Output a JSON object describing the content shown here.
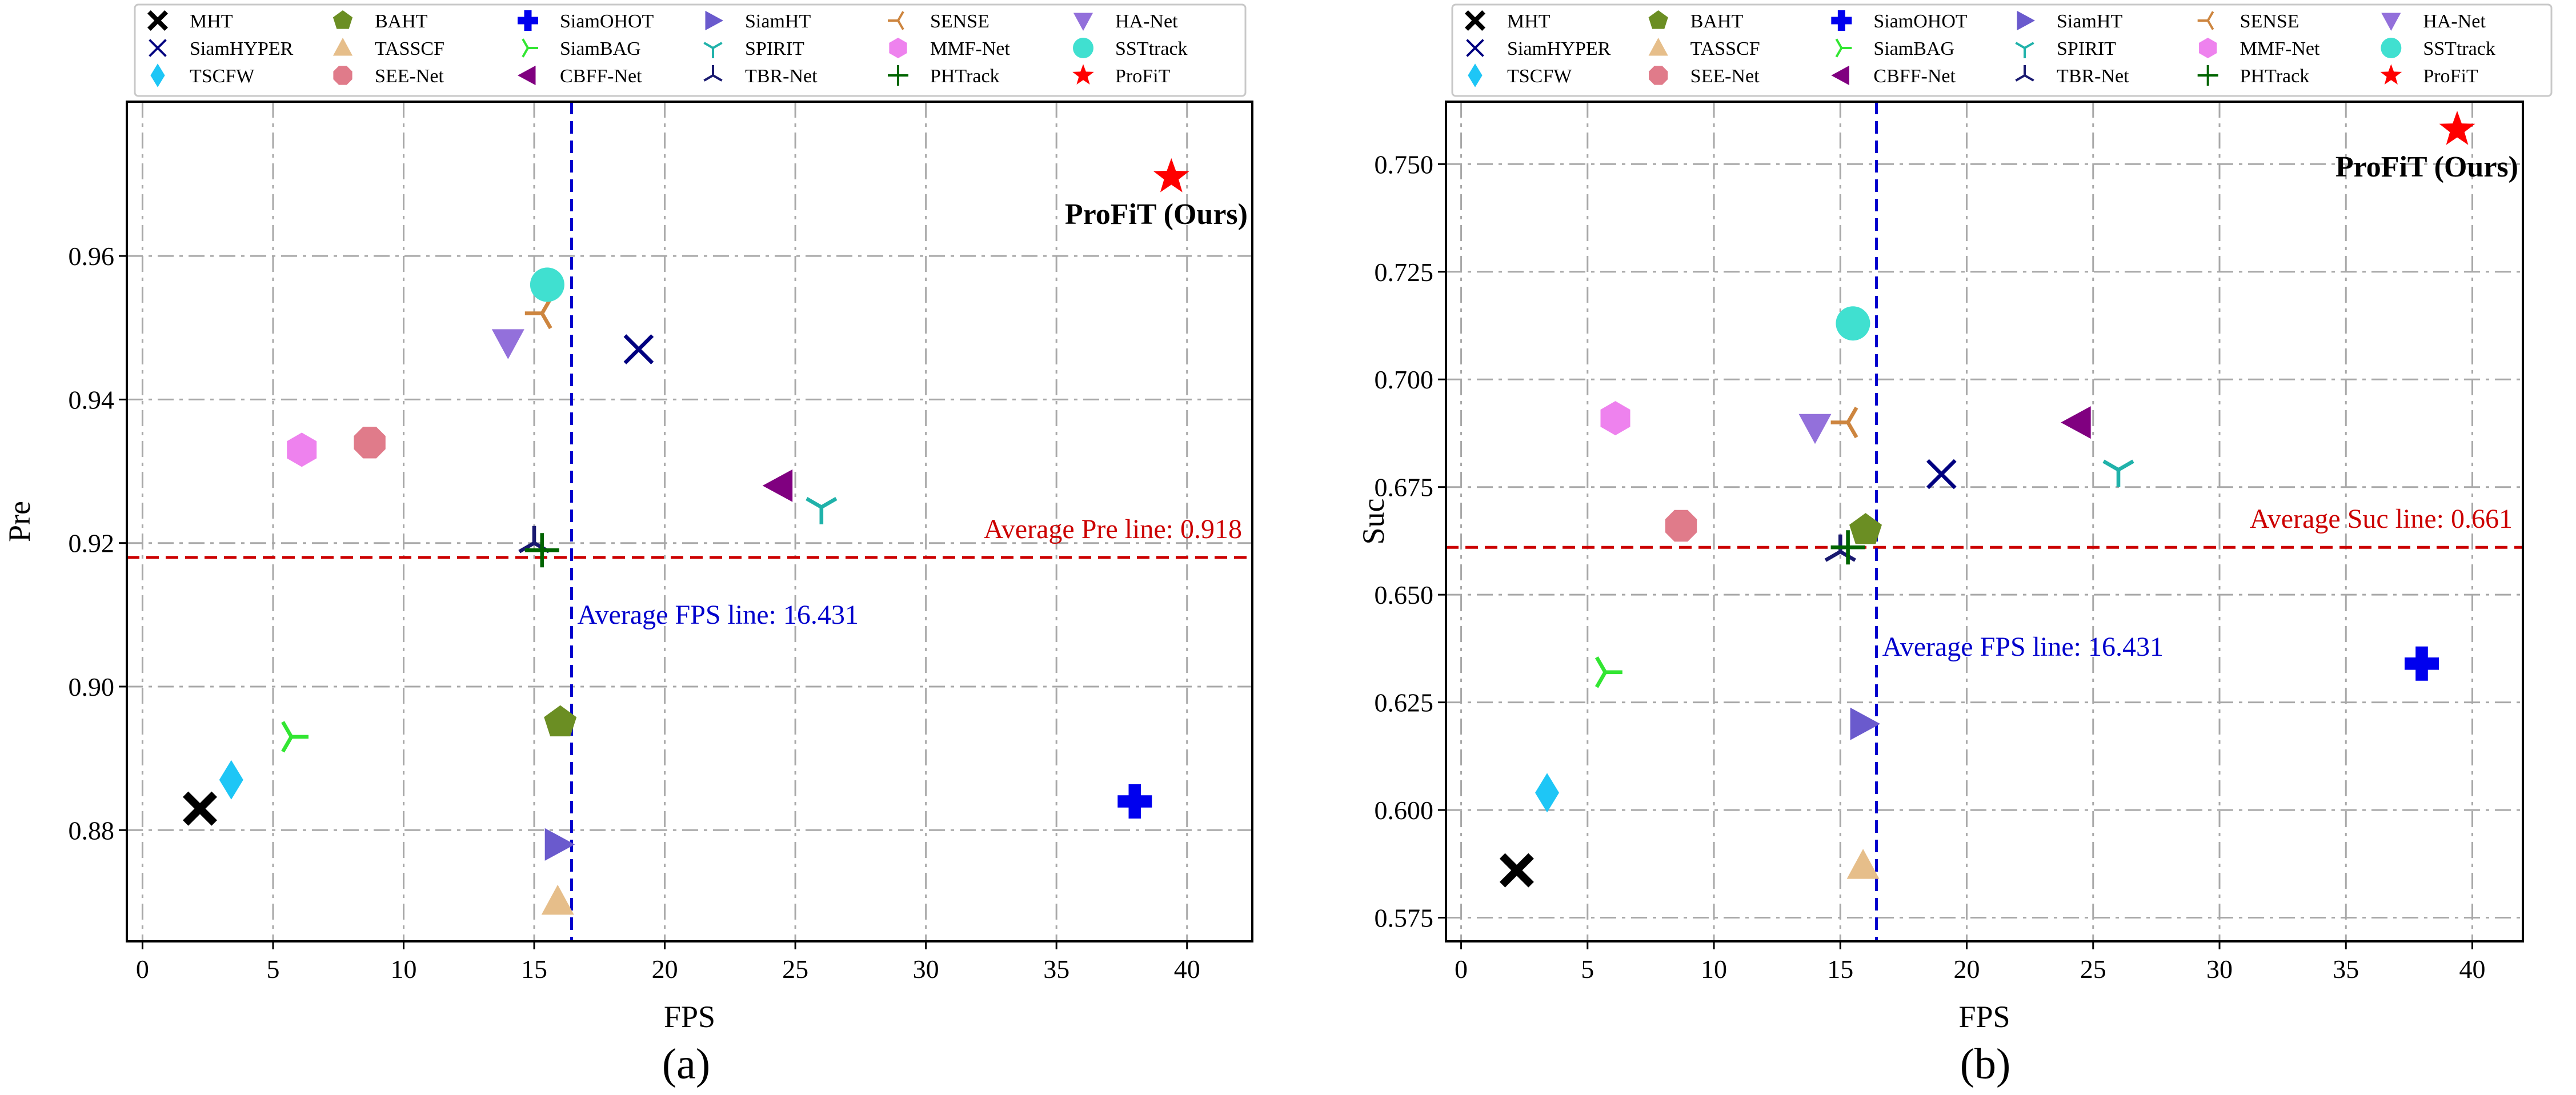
{
  "legend_entries": [
    {
      "name": "MHT",
      "marker": "X",
      "color": "#000000"
    },
    {
      "name": "SiamHYPER",
      "marker": "x",
      "color": "#000080"
    },
    {
      "name": "TSCFW",
      "marker": "diamond",
      "color": "#1ec6f6"
    },
    {
      "name": "BAHT",
      "marker": "pentagon",
      "color": "#6b8e23"
    },
    {
      "name": "TASSCF",
      "marker": "triangle-up",
      "color": "#e6be8a"
    },
    {
      "name": "SEE-Net",
      "marker": "octagon",
      "color": "#e07b8a"
    },
    {
      "name": "SiamOHOT",
      "marker": "plus-filled",
      "color": "#0000ee"
    },
    {
      "name": "SiamBAG",
      "marker": "tri-right",
      "color": "#32e632"
    },
    {
      "name": "CBFF-Net",
      "marker": "triangle-left",
      "color": "#800080"
    },
    {
      "name": "SiamHT",
      "marker": "triangle-right",
      "color": "#6a5acd"
    },
    {
      "name": "SPIRIT",
      "marker": "tri-down",
      "color": "#20b2aa"
    },
    {
      "name": "TBR-Net",
      "marker": "tri-up",
      "color": "#191970"
    },
    {
      "name": "SENSE",
      "marker": "tri-left",
      "color": "#cd853f"
    },
    {
      "name": "MMF-Net",
      "marker": "hexagon",
      "color": "#ee82ee"
    },
    {
      "name": "PHTrack",
      "marker": "plus",
      "color": "#006400"
    },
    {
      "name": "HA-Net",
      "marker": "triangle-down",
      "color": "#9370db"
    },
    {
      "name": "SSTtrack",
      "marker": "circle",
      "color": "#40e0d0"
    },
    {
      "name": "ProFiT",
      "marker": "star",
      "color": "#ff0000"
    }
  ],
  "chart_data": [
    {
      "type": "scatter",
      "caption": "(a)",
      "xlabel": "FPS",
      "ylabel": "Pre",
      "xlim": [
        -0.6,
        42.5
      ],
      "ylim": [
        0.8645,
        0.9815
      ],
      "xticks": [
        "0",
        "5",
        "10",
        "15",
        "20",
        "25",
        "30",
        "35",
        "40"
      ],
      "yticks": [
        "0.88",
        "0.90",
        "0.92",
        "0.94",
        "0.96"
      ],
      "grid": true,
      "points": [
        {
          "name": "MHT",
          "x": 2.2,
          "y": 0.883
        },
        {
          "name": "SiamHYPER",
          "x": 19.0,
          "y": 0.947
        },
        {
          "name": "TSCFW",
          "x": 3.4,
          "y": 0.887
        },
        {
          "name": "BAHT",
          "x": 16.0,
          "y": 0.895
        },
        {
          "name": "TASSCF",
          "x": 15.9,
          "y": 0.87
        },
        {
          "name": "SEE-Net",
          "x": 8.7,
          "y": 0.934
        },
        {
          "name": "SiamOHOT",
          "x": 38.0,
          "y": 0.884
        },
        {
          "name": "SiamBAG",
          "x": 5.7,
          "y": 0.893
        },
        {
          "name": "CBFF-Net",
          "x": 24.4,
          "y": 0.928
        },
        {
          "name": "SiamHT",
          "x": 15.9,
          "y": 0.878
        },
        {
          "name": "SPIRIT",
          "x": 26.0,
          "y": 0.925
        },
        {
          "name": "TBR-Net",
          "x": 15.0,
          "y": 0.92
        },
        {
          "name": "SENSE",
          "x": 15.3,
          "y": 0.952
        },
        {
          "name": "MMF-Net",
          "x": 6.1,
          "y": 0.933
        },
        {
          "name": "PHTrack",
          "x": 15.3,
          "y": 0.919
        },
        {
          "name": "HA-Net",
          "x": 14.0,
          "y": 0.948
        },
        {
          "name": "SSTtrack",
          "x": 15.5,
          "y": 0.956
        },
        {
          "name": "ProFiT",
          "x": 39.4,
          "y": 0.971
        }
      ],
      "reference_lines": {
        "horizontal": {
          "value": 0.918,
          "label": "Average Pre line: 0.918",
          "color": "#cc0000"
        },
        "vertical": {
          "value": 16.431,
          "label": "Average FPS line: 16.431",
          "color": "#0000cc"
        }
      },
      "highlight_label": "ProFiT (Ours)"
    },
    {
      "type": "scatter",
      "caption": "(b)",
      "xlabel": "FPS",
      "ylabel": "Suc",
      "xlim": [
        -0.6,
        42.0
      ],
      "ylim": [
        0.5695,
        0.7645
      ],
      "xticks": [
        "0",
        "5",
        "10",
        "15",
        "20",
        "25",
        "30",
        "35",
        "40"
      ],
      "yticks": [
        "0.575",
        "0.600",
        "0.625",
        "0.650",
        "0.675",
        "0.700",
        "0.725",
        "0.750"
      ],
      "grid": true,
      "points": [
        {
          "name": "MHT",
          "x": 2.2,
          "y": 0.586
        },
        {
          "name": "SiamHYPER",
          "x": 19.0,
          "y": 0.678
        },
        {
          "name": "TSCFW",
          "x": 3.4,
          "y": 0.604
        },
        {
          "name": "BAHT",
          "x": 16.0,
          "y": 0.665
        },
        {
          "name": "TASSCF",
          "x": 15.9,
          "y": 0.587
        },
        {
          "name": "SEE-Net",
          "x": 8.7,
          "y": 0.666
        },
        {
          "name": "SiamOHOT",
          "x": 38.0,
          "y": 0.634
        },
        {
          "name": "SiamBAG",
          "x": 5.7,
          "y": 0.632
        },
        {
          "name": "CBFF-Net",
          "x": 24.4,
          "y": 0.69
        },
        {
          "name": "SiamHT",
          "x": 15.9,
          "y": 0.62
        },
        {
          "name": "SPIRIT",
          "x": 26.0,
          "y": 0.679
        },
        {
          "name": "TBR-Net",
          "x": 15.0,
          "y": 0.66
        },
        {
          "name": "SENSE",
          "x": 15.3,
          "y": 0.69
        },
        {
          "name": "MMF-Net",
          "x": 6.1,
          "y": 0.691
        },
        {
          "name": "PHTrack",
          "x": 15.3,
          "y": 0.661
        },
        {
          "name": "HA-Net",
          "x": 14.0,
          "y": 0.689
        },
        {
          "name": "SSTtrack",
          "x": 15.5,
          "y": 0.713
        },
        {
          "name": "ProFiT",
          "x": 39.4,
          "y": 0.758
        }
      ],
      "reference_lines": {
        "horizontal": {
          "value": 0.661,
          "label": "Average Suc line: 0.661",
          "color": "#cc0000"
        },
        "vertical": {
          "value": 16.431,
          "label": "Average FPS line: 16.431",
          "color": "#0000cc"
        }
      },
      "highlight_label": "ProFiT (Ours)"
    }
  ]
}
